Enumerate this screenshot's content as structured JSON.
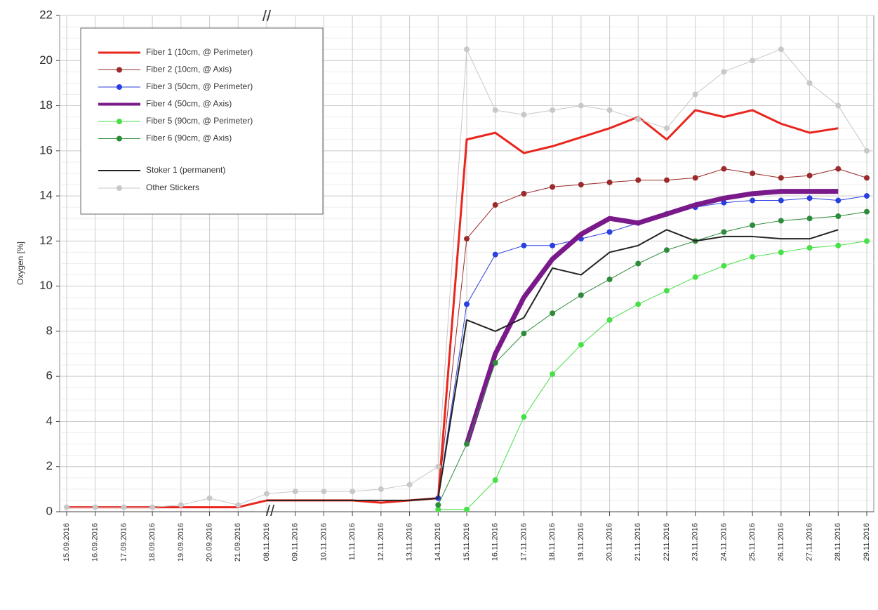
{
  "chart_data": {
    "type": "line",
    "y_label": "Oxygen [%]",
    "categories": [
      "15.09.2016",
      "16.09.2016",
      "17.09.2016",
      "18.09.2016",
      "19.09.2016",
      "20.09.2016",
      "21.09.2016",
      "08.11.2016",
      "09.11.2016",
      "10.11.2016",
      "11.11.2016",
      "12.11.2016",
      "13.11.2016",
      "14.11.2016",
      "15.11.2016",
      "16.11.2016",
      "17.11.2016",
      "18.11.2016",
      "19.11.2016",
      "20.11.2016",
      "21.11.2016",
      "22.11.2016",
      "23.11.2016",
      "24.11.2016",
      "25.11.2016",
      "26.11.2016",
      "27.11.2016",
      "28.11.2016",
      "29.11.2016"
    ],
    "ylim": [
      0,
      22
    ],
    "yticks": [
      0,
      2,
      4,
      6,
      8,
      10,
      12,
      14,
      16,
      18,
      20,
      22
    ],
    "grid": true,
    "series": [
      {
        "name": "Fiber 1 (10cm, @ Perimeter)",
        "color": "#e8261e",
        "width": 3,
        "marker": false,
        "values": [
          0.2,
          0.2,
          0.2,
          0.2,
          0.2,
          0.2,
          0.2,
          0.5,
          0.5,
          0.5,
          0.5,
          0.4,
          0.5,
          0.6,
          16.5,
          16.8,
          15.9,
          16.2,
          16.6,
          17.0,
          17.5,
          16.5,
          17.8,
          17.5,
          17.8,
          17.2,
          16.8,
          17.0,
          null
        ]
      },
      {
        "name": "Fiber 2 (10cm, @ Axis)",
        "color": "#9b2a2a",
        "width": 1,
        "marker": true,
        "values": [
          null,
          null,
          null,
          null,
          null,
          null,
          null,
          null,
          null,
          null,
          null,
          null,
          null,
          0.6,
          12.1,
          13.6,
          14.1,
          14.4,
          14.5,
          14.6,
          14.7,
          14.7,
          14.8,
          15.2,
          15.0,
          14.8,
          14.9,
          15.2,
          14.8
        ]
      },
      {
        "name": "Fiber 3 (50cm, @ Perimeter)",
        "color": "#2a3fe0",
        "width": 1,
        "marker": true,
        "values": [
          null,
          null,
          null,
          null,
          null,
          null,
          null,
          null,
          null,
          null,
          null,
          null,
          null,
          0.6,
          9.2,
          11.4,
          11.8,
          11.8,
          12.1,
          12.4,
          12.8,
          13.2,
          13.5,
          13.7,
          13.8,
          13.8,
          13.9,
          13.8,
          14.0
        ]
      },
      {
        "name": "Fiber 4 (50cm, @ Axis)",
        "color": "#7a1a8a",
        "width": 7,
        "marker": false,
        "values": [
          null,
          null,
          null,
          null,
          null,
          null,
          null,
          null,
          null,
          null,
          null,
          null,
          null,
          null,
          3.0,
          7.0,
          9.5,
          11.2,
          12.3,
          13.0,
          12.8,
          13.2,
          13.6,
          13.9,
          14.1,
          14.2,
          14.2,
          14.2,
          null
        ]
      },
      {
        "name": "Fiber 5 (90cm, @ Perimeter)",
        "color": "#48e048",
        "width": 1,
        "marker": true,
        "values": [
          null,
          null,
          null,
          null,
          null,
          null,
          null,
          null,
          null,
          null,
          null,
          null,
          null,
          0.1,
          0.1,
          1.4,
          4.2,
          6.1,
          7.4,
          8.5,
          9.2,
          9.8,
          10.4,
          10.9,
          11.3,
          11.5,
          11.7,
          11.8,
          12.0
        ]
      },
      {
        "name": "Fiber 6 (90cm, @ Axis)",
        "color": "#2e8b3a",
        "width": 1,
        "marker": true,
        "values": [
          null,
          null,
          null,
          null,
          null,
          null,
          null,
          null,
          null,
          null,
          null,
          null,
          null,
          0.3,
          3.0,
          6.6,
          7.9,
          8.8,
          9.6,
          10.3,
          11.0,
          11.6,
          12.0,
          12.4,
          12.7,
          12.9,
          13.0,
          13.1,
          13.3
        ]
      },
      {
        "name": "Stoker 1 (permanent)",
        "color": "#222222",
        "width": 2,
        "marker": false,
        "values": [
          null,
          null,
          null,
          null,
          null,
          null,
          null,
          0.5,
          0.5,
          0.5,
          0.5,
          0.5,
          0.5,
          0.6,
          8.5,
          8.0,
          8.6,
          10.8,
          10.5,
          11.5,
          11.8,
          12.5,
          12.0,
          12.2,
          12.2,
          12.1,
          12.1,
          12.5,
          null
        ]
      },
      {
        "name": "Other Stickers",
        "color": "#c8c8c8",
        "width": 1,
        "marker": true,
        "values": [
          0.2,
          0.2,
          0.2,
          0.2,
          0.3,
          0.6,
          0.3,
          0.8,
          0.9,
          0.9,
          0.9,
          1.0,
          1.2,
          2.0,
          20.5,
          17.8,
          17.6,
          17.8,
          18.0,
          17.8,
          17.4,
          17.0,
          18.5,
          19.5,
          20.0,
          20.5,
          19.0,
          18.0,
          16.0
        ]
      }
    ]
  }
}
